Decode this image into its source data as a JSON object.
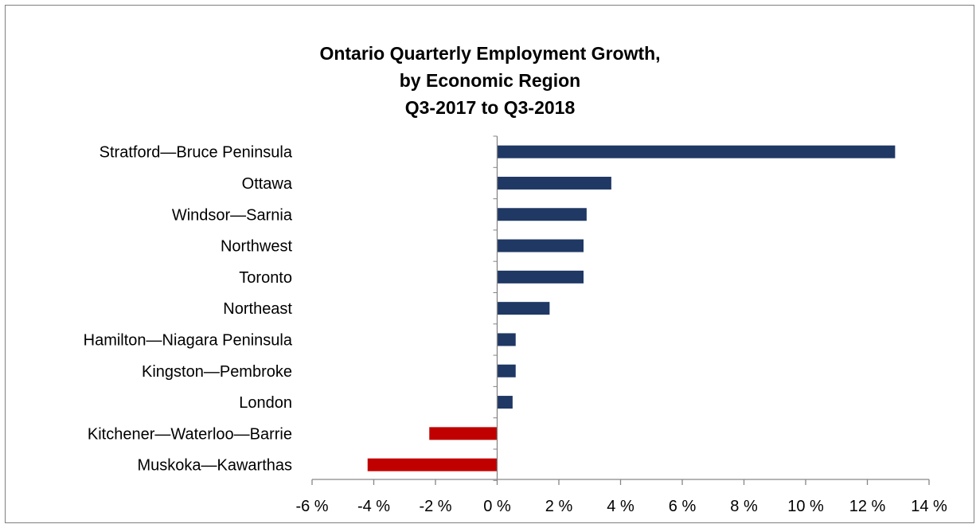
{
  "chart_data": {
    "type": "bar",
    "orientation": "horizontal",
    "title_lines": [
      "Ontario Quarterly Employment Growth,",
      "by Economic Region",
      "Q3-2017 to Q3-2018"
    ],
    "categories": [
      "Stratford—Bruce Peninsula",
      "Ottawa",
      "Windsor—Sarnia",
      "Northwest",
      "Toronto",
      "Northeast",
      "Hamilton—Niagara Peninsula",
      "Kingston—Pembroke",
      "London",
      "Kitchener—Waterloo—Barrie",
      "Muskoka—Kawarthas"
    ],
    "values": [
      12.9,
      3.7,
      2.9,
      2.8,
      2.8,
      1.7,
      0.6,
      0.6,
      0.5,
      -2.2,
      -4.2
    ],
    "unit": "%",
    "xlim": [
      -6,
      14
    ],
    "xticks": [
      -6,
      -4,
      -2,
      0,
      2,
      4,
      6,
      8,
      10,
      12,
      14
    ],
    "xtick_labels": [
      "-6 %",
      "-4 %",
      "-2 %",
      "0 %",
      "2 %",
      "4 %",
      "6 %",
      "8 %",
      "10 %",
      "12 %",
      "14 %"
    ],
    "colors": {
      "positive": "#1f3864",
      "negative": "#c00000",
      "axis": "#868686"
    },
    "grid": false,
    "legend": "none"
  }
}
